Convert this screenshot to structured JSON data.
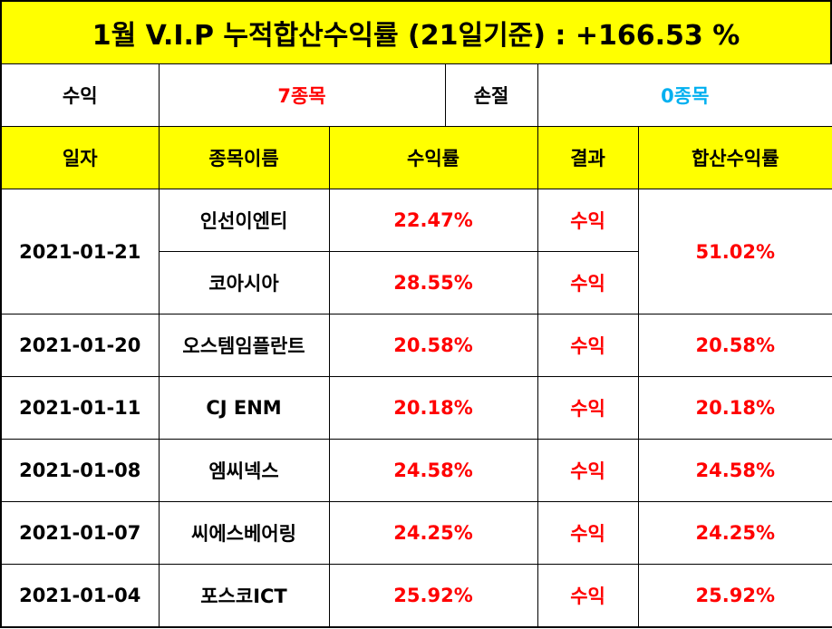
{
  "title": "1월 V.I.P 누적합산수익률 (21일기준) : +166.53 %",
  "summary": {
    "profit_label": "수익",
    "profit_value": "7종목",
    "loss_label": "손절",
    "loss_value": "0종목"
  },
  "headers": {
    "date": "일자",
    "stock": "종목이름",
    "return": "수익률",
    "result": "결과",
    "total": "합산수익률"
  },
  "rows": [
    {
      "date": "2021-01-21",
      "stock": "인선이엔티",
      "return": "22.47%",
      "result": "수익",
      "total": "51.02%"
    },
    {
      "date": "",
      "stock": "코아시아",
      "return": "28.55%",
      "result": "수익",
      "total": ""
    },
    {
      "date": "2021-01-20",
      "stock": "오스템임플란트",
      "return": "20.58%",
      "result": "수익",
      "total": "20.58%"
    },
    {
      "date": "2021-01-11",
      "stock": "CJ ENM",
      "return": "20.18%",
      "result": "수익",
      "total": "20.18%"
    },
    {
      "date": "2021-01-08",
      "stock": "엠씨넥스",
      "return": "24.58%",
      "result": "수익",
      "total": "24.58%"
    },
    {
      "date": "2021-01-07",
      "stock": "씨에스베어링",
      "return": "24.25%",
      "result": "수익",
      "total": "24.25%"
    },
    {
      "date": "2021-01-04",
      "stock": "포스코ICT",
      "return": "25.92%",
      "result": "수익",
      "total": "25.92%"
    }
  ],
  "colors": {
    "header_bg": "#ffff00",
    "profit_text": "#ff0000",
    "loss_text": "#00b0f0"
  }
}
